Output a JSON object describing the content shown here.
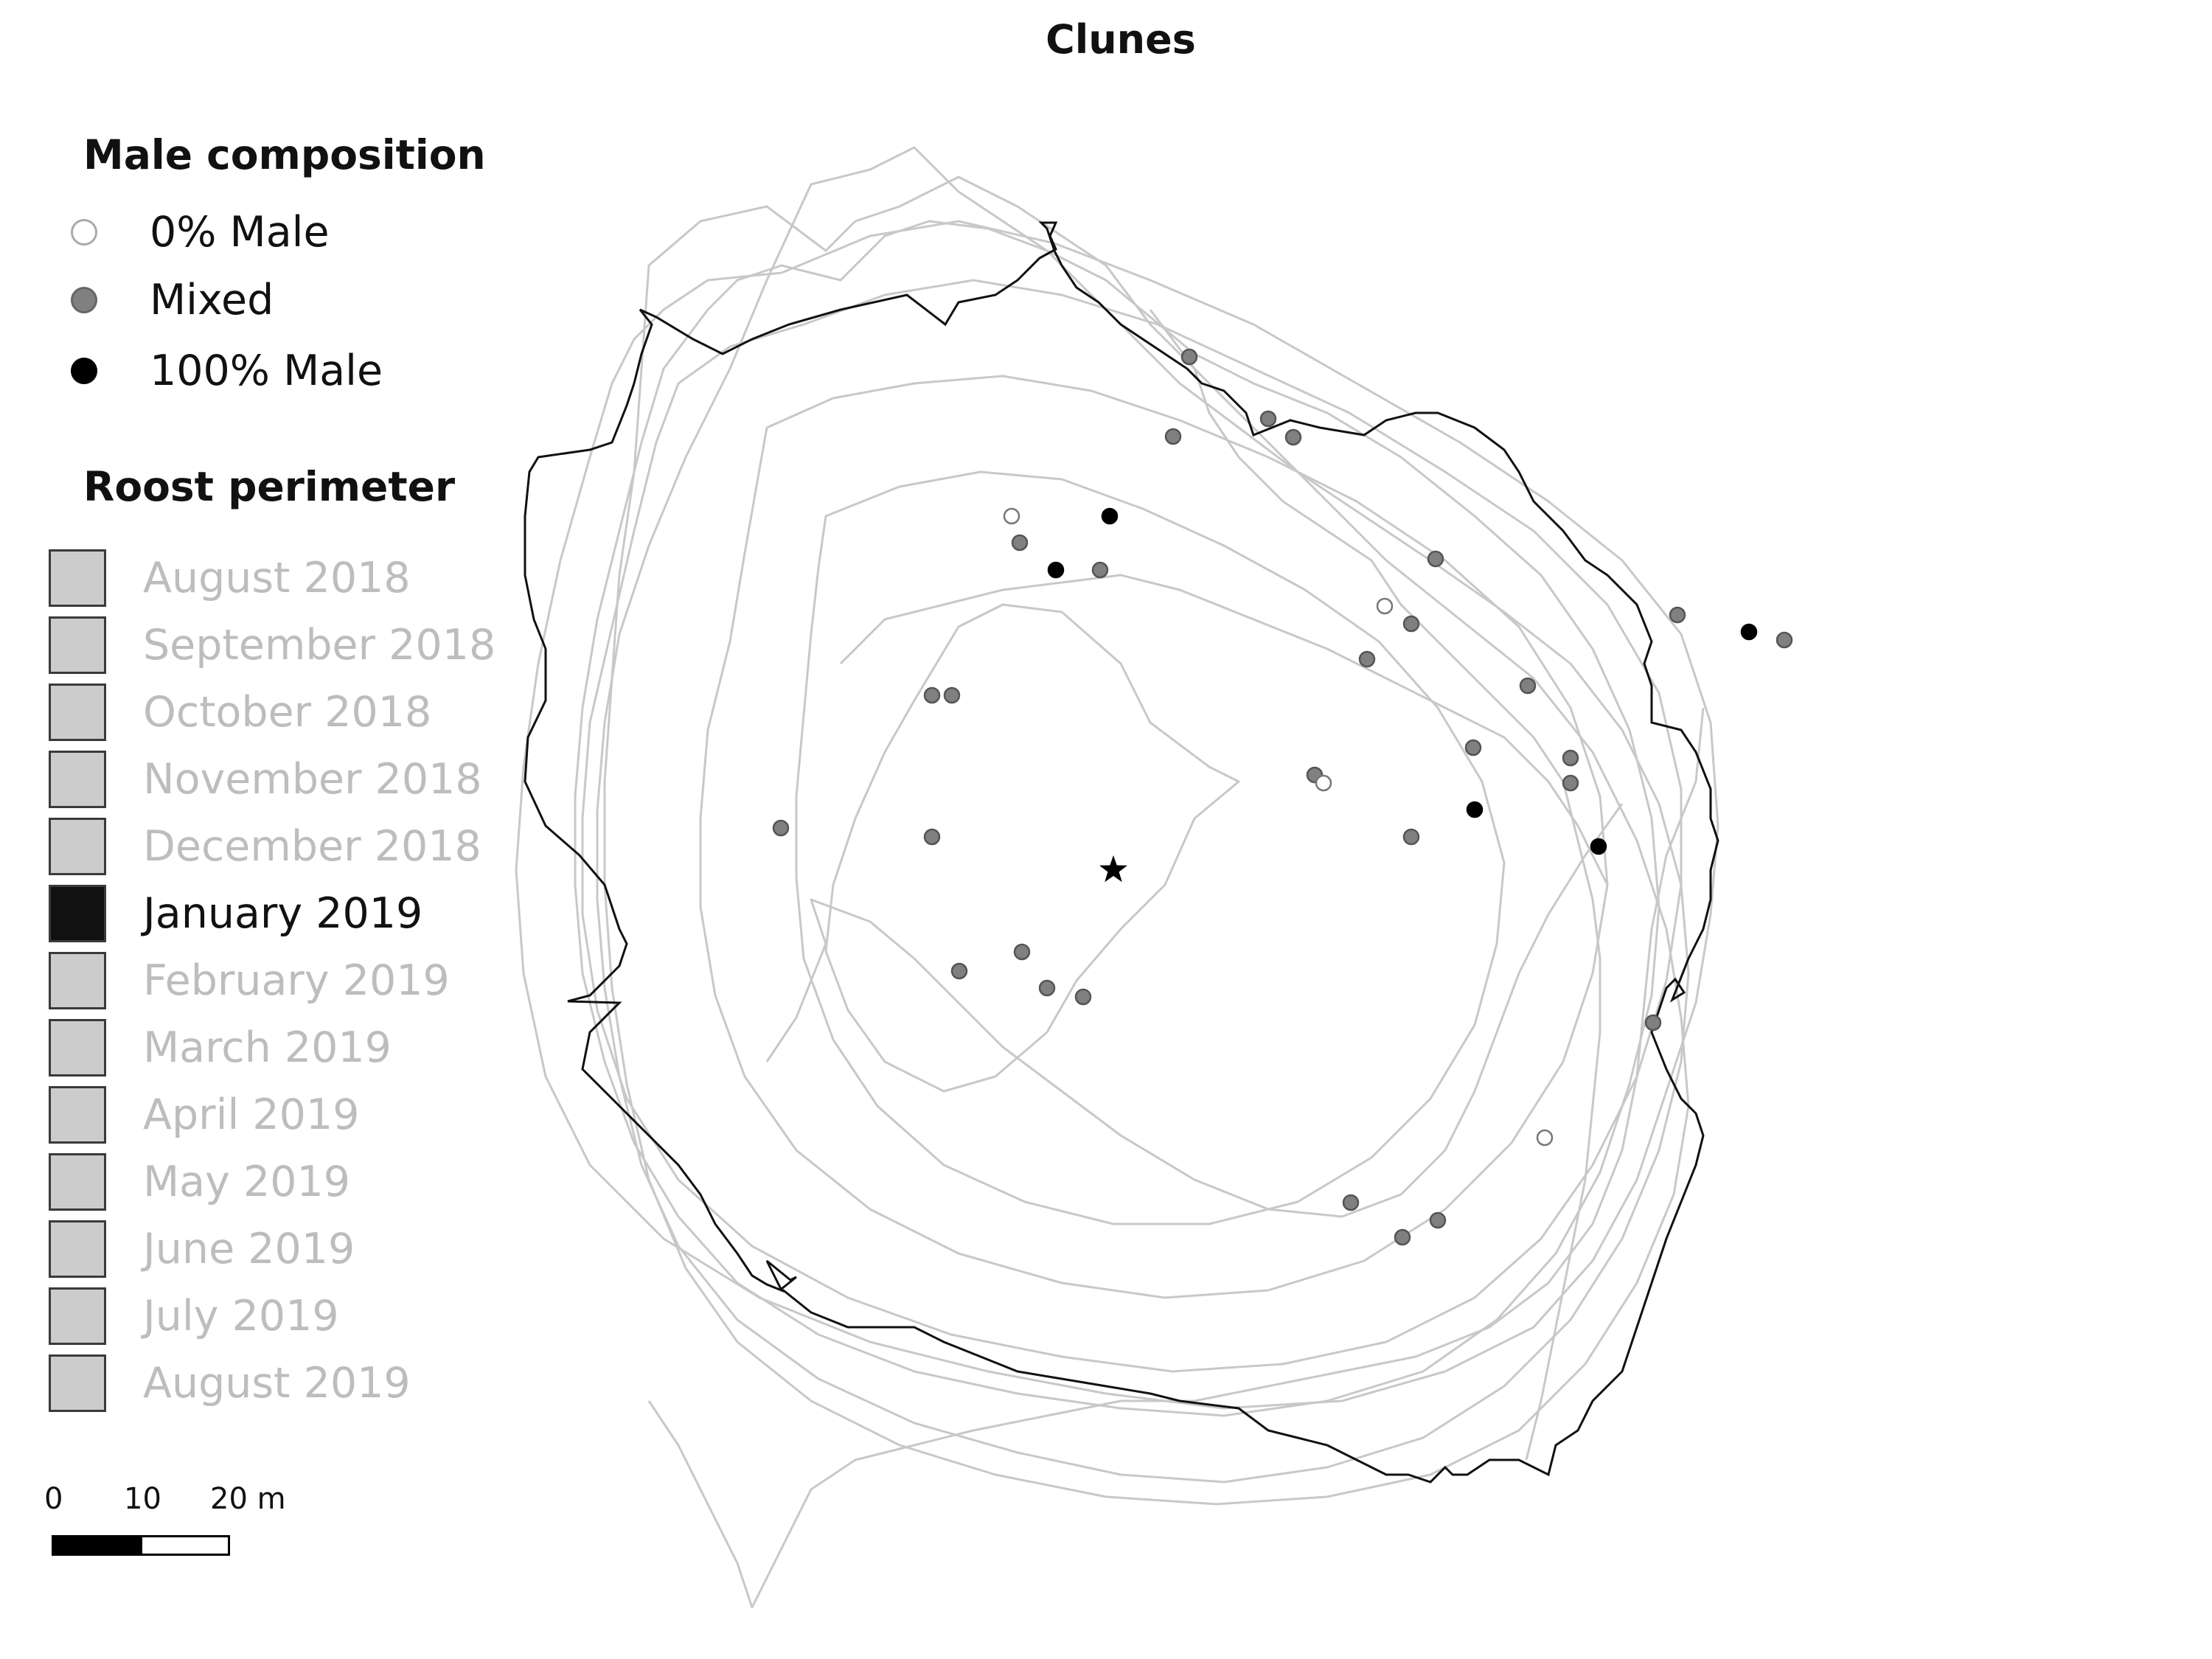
{
  "title": "Clunes",
  "legend": {
    "male_heading": "Male composition",
    "male_items": [
      {
        "label": "0% Male",
        "color": "#ffffff"
      },
      {
        "label": "Mixed",
        "color": "#808080"
      },
      {
        "label": "100% Male",
        "color": "#000000"
      }
    ],
    "roost_heading": "Roost perimeter",
    "months": [
      "August 2018",
      "September 2018",
      "October 2018",
      "November 2018",
      "December 2018",
      "January 2019",
      "February 2019",
      "March 2019",
      "April 2019",
      "May 2019",
      "June 2019",
      "July 2019",
      "August 2019"
    ],
    "active_month": "January 2019",
    "active_color": "#111111",
    "inactive_color": "#cccccc"
  },
  "scale_bar": {
    "ticks": [
      "0",
      "10",
      "20 m"
    ]
  },
  "markers": {
    "roost_center": "star-icon"
  }
}
